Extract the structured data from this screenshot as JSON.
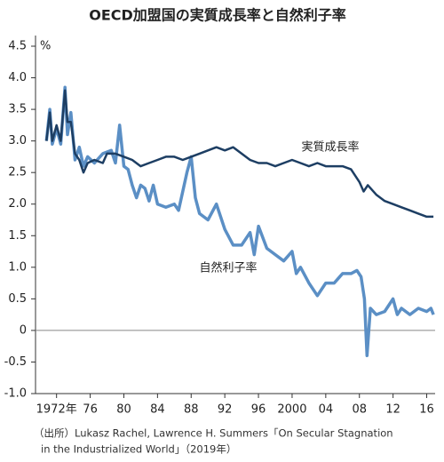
{
  "chart_data": {
    "type": "line",
    "title": "OECD加盟国の実質成長率と自然利子率",
    "y_unit": "%",
    "xlim": [
      1969.5,
      2017
    ],
    "ylim": [
      -1,
      4.5
    ],
    "yticks": [
      {
        "value": 4.5,
        "label": "4.5"
      },
      {
        "value": 4,
        "label": "4.0"
      },
      3.5,
      {
        "value": 3,
        "label": "3.0"
      },
      2.5,
      {
        "value": 2,
        "label": "2.0"
      },
      1.5,
      {
        "value": 1,
        "label": "1.0"
      },
      0.5,
      0,
      -0.5,
      {
        "value": -1,
        "label": "-1.0"
      }
    ],
    "xticks": [
      {
        "value": 1972,
        "label": "1972年"
      },
      {
        "value": 1976,
        "label": "76"
      },
      {
        "value": 1980,
        "label": "80"
      },
      {
        "value": 1984,
        "label": "84"
      },
      {
        "value": 1988,
        "label": "88"
      },
      {
        "value": 1992,
        "label": "92"
      },
      {
        "value": 1996,
        "label": "96"
      },
      {
        "value": 2000,
        "label": "2000"
      },
      {
        "value": 2004,
        "label": "04"
      },
      {
        "value": 2008,
        "label": "08"
      },
      {
        "value": 2012,
        "label": "12"
      },
      {
        "value": 2016,
        "label": "16"
      }
    ],
    "zero_line": true,
    "series": [
      {
        "name": "実質成長率",
        "color": "#1d3e63",
        "x": [
          1970.8,
          1971.2,
          1971.5,
          1972.0,
          1972.5,
          1973.0,
          1973.3,
          1973.7,
          1974.2,
          1974.7,
          1975.2,
          1975.7,
          1976.5,
          1977.5,
          1978.0,
          1979.0,
          1980.0,
          1981.0,
          1982.0,
          1983.0,
          1984.0,
          1985.0,
          1986.0,
          1987.0,
          1988.0,
          1989.0,
          1990.0,
          1991.0,
          1992.0,
          1993.0,
          1994.0,
          1995.0,
          1996.0,
          1997.0,
          1998.0,
          1999.0,
          2000.0,
          2001.0,
          2002.0,
          2003.0,
          2004.0,
          2005.0,
          2006.0,
          2007.0,
          2008.0,
          2008.5,
          2009.0,
          2010.0,
          2011.0,
          2012.0,
          2013.0,
          2014.0,
          2015.0,
          2016.0,
          2016.8
        ],
        "values": [
          3.0,
          3.45,
          3.0,
          3.25,
          3.0,
          3.8,
          3.3,
          3.3,
          2.8,
          2.7,
          2.5,
          2.65,
          2.7,
          2.65,
          2.8,
          2.8,
          2.75,
          2.7,
          2.6,
          2.65,
          2.7,
          2.75,
          2.75,
          2.7,
          2.75,
          2.8,
          2.85,
          2.9,
          2.85,
          2.9,
          2.8,
          2.7,
          2.65,
          2.65,
          2.6,
          2.65,
          2.7,
          2.65,
          2.6,
          2.65,
          2.6,
          2.6,
          2.6,
          2.55,
          2.35,
          2.2,
          2.3,
          2.15,
          2.05,
          2.0,
          1.95,
          1.9,
          1.85,
          1.8,
          1.8
        ]
      },
      {
        "name": "自然利子率",
        "color": "#5b8fc5",
        "x": [
          1970.8,
          1971.2,
          1971.5,
          1972.0,
          1972.5,
          1973.0,
          1973.3,
          1973.7,
          1974.2,
          1974.7,
          1975.2,
          1975.7,
          1976.5,
          1977.5,
          1978.5,
          1979.0,
          1979.5,
          1980.0,
          1980.5,
          1981.0,
          1981.5,
          1982.0,
          1982.5,
          1983.0,
          1983.5,
          1984.0,
          1985.0,
          1986.0,
          1986.5,
          1987.5,
          1988.0,
          1988.5,
          1989.0,
          1990.0,
          1991.0,
          1992.0,
          1993.0,
          1994.0,
          1995.0,
          1995.5,
          1996.0,
          1997.0,
          1998.0,
          1999.0,
          2000.0,
          2000.5,
          2001.0,
          2002.0,
          2003.0,
          2004.0,
          2005.0,
          2006.0,
          2007.0,
          2007.7,
          2008.2,
          2008.6,
          2008.9,
          2009.3,
          2010.0,
          2011.0,
          2012.0,
          2012.5,
          2013.0,
          2014.0,
          2015.0,
          2016.0,
          2016.5,
          2016.8
        ],
        "values": [
          3.0,
          3.5,
          2.95,
          3.2,
          2.95,
          3.85,
          3.1,
          3.45,
          2.7,
          2.9,
          2.6,
          2.75,
          2.65,
          2.8,
          2.85,
          2.65,
          3.25,
          2.6,
          2.55,
          2.3,
          2.1,
          2.3,
          2.25,
          2.05,
          2.3,
          2.0,
          1.95,
          2.0,
          1.9,
          2.5,
          2.75,
          2.1,
          1.85,
          1.75,
          2.0,
          1.6,
          1.35,
          1.35,
          1.55,
          1.2,
          1.65,
          1.3,
          1.2,
          1.1,
          1.25,
          0.9,
          1.0,
          0.75,
          0.55,
          0.75,
          0.75,
          0.9,
          0.9,
          0.95,
          0.85,
          0.5,
          -0.4,
          0.35,
          0.25,
          0.3,
          0.5,
          0.25,
          0.35,
          0.25,
          0.35,
          0.3,
          0.35,
          0.25
        ]
      }
    ],
    "source": [
      "（出所）Lukasz Rachel, Lawrence H. Summers「On Secular Stagnation",
      "in the Industrialized World」（2019年）"
    ]
  }
}
